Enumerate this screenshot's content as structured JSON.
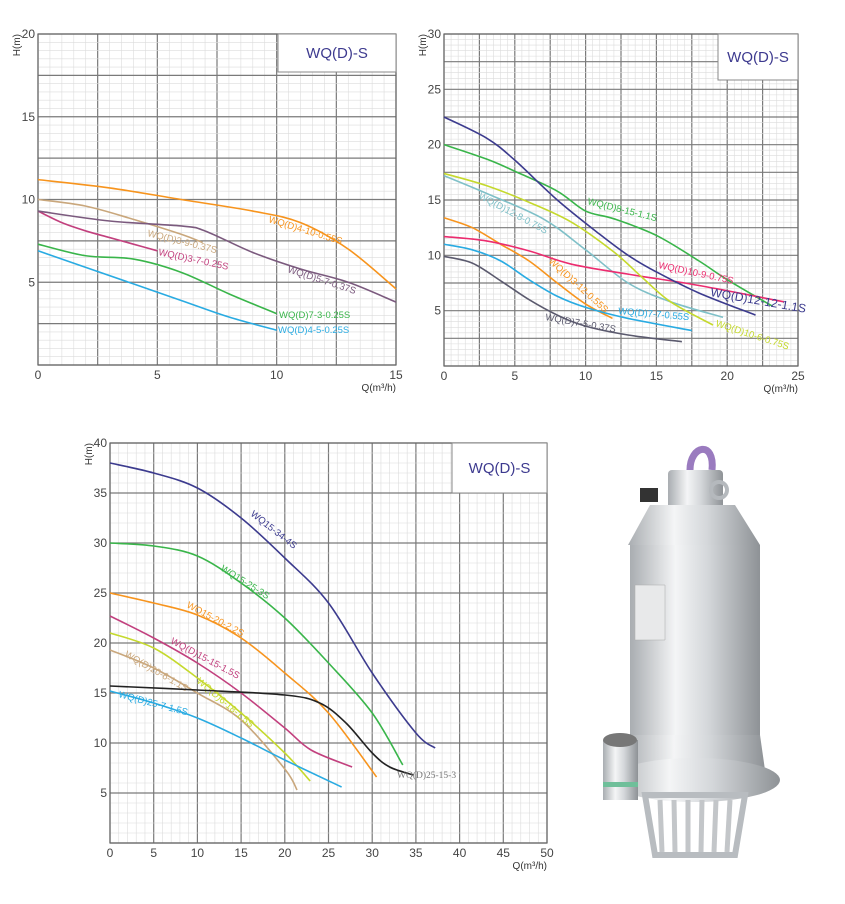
{
  "chart_data": [
    {
      "type": "line",
      "title": "WQ(D)-S",
      "xlabel": "Q(m³/h)",
      "ylabel": "H(m)",
      "xlim": [
        0,
        15
      ],
      "ylim": [
        0,
        20
      ],
      "xticks": [
        "0",
        "5",
        "10",
        "15"
      ],
      "yticks": [
        "5",
        "10",
        "15",
        "20"
      ],
      "grid": true,
      "series": [
        {
          "name": "WQ(D)4-10-0.55S",
          "color": "#f7941d",
          "x": [
            0,
            3,
            6,
            9,
            11,
            13,
            15
          ],
          "y": [
            11.2,
            10.7,
            10,
            9.3,
            8.6,
            7,
            4.6
          ]
        },
        {
          "name": "WQ(D)3-9-0.37S",
          "color": "#c9a77c",
          "x": [
            0,
            2,
            4,
            6,
            6.9
          ],
          "y": [
            10,
            9.6,
            8.8,
            7.9,
            7.4
          ]
        },
        {
          "name": "WQ(D)3-7-0.25S",
          "color": "#c2407e",
          "x": [
            0,
            1,
            2,
            3,
            4,
            5
          ],
          "y": [
            9.3,
            8.6,
            8.1,
            7.7,
            7.3,
            6.9
          ]
        },
        {
          "name": "WQ(D)5-7-0.37S",
          "color": "#7b5a7e",
          "x": [
            0,
            3,
            6,
            7,
            9,
            11,
            13,
            15
          ],
          "y": [
            9.3,
            8.7,
            8.4,
            8.1,
            6.8,
            5.8,
            5,
            3.8
          ]
        },
        {
          "name": "WQ(D)7-3-0.25S",
          "color": "#39b54a",
          "x": [
            0,
            2,
            4,
            6,
            8,
            10
          ],
          "y": [
            7.3,
            6.6,
            6.4,
            5.6,
            4.3,
            3.1
          ]
        },
        {
          "name": "WQ(D)4-5-0.25S",
          "color": "#29abe2",
          "x": [
            0,
            2,
            4,
            6,
            8,
            10
          ],
          "y": [
            6.9,
            5.9,
            4.9,
            3.9,
            2.9,
            2.1
          ]
        }
      ]
    },
    {
      "type": "line",
      "title": "WQ(D)-S",
      "xlabel": "Q(m³/h)",
      "ylabel": "H(m)",
      "xlim": [
        0,
        25
      ],
      "ylim": [
        0,
        30
      ],
      "xticks": [
        "0",
        "5",
        "10",
        "15",
        "20",
        "25"
      ],
      "yticks": [
        "5",
        "10",
        "15",
        "20",
        "25",
        "30"
      ],
      "grid": true,
      "series": [
        {
          "name": "WQ(D)12-8-0.75S",
          "color": "#7fc0c8",
          "x": [
            0,
            3,
            7,
            10,
            13,
            16,
            19.7
          ],
          "y": [
            17.2,
            15.6,
            13.3,
            10.5,
            7.5,
            5.8,
            4.4
          ]
        },
        {
          "name": "WQ(D)8-15-1.1S",
          "color": "#39b54a",
          "x": [
            0,
            3,
            5,
            8,
            10,
            12,
            15,
            18,
            20,
            23.2
          ],
          "y": [
            20,
            18.7,
            17.6,
            15.8,
            14,
            13.3,
            11.8,
            9.5,
            7.8,
            5.4
          ]
        },
        {
          "name": "WQ(D)3-12-0.55S",
          "color": "#f7941d",
          "x": [
            0,
            2,
            4,
            6,
            8,
            10,
            11.9
          ],
          "y": [
            13.4,
            12.5,
            11,
            9.5,
            7.5,
            5.6,
            4.3
          ]
        },
        {
          "name": "WQ(D)10-9-0.75S",
          "color": "#ec2c6f",
          "x": [
            0,
            3,
            6,
            9,
            13,
            17,
            20,
            24
          ],
          "y": [
            11.7,
            11.3,
            10.4,
            9.2,
            8.3,
            7.5,
            6.8,
            5.8
          ]
        },
        {
          "name": "WQ(D)12-12-1.1S",
          "color": "#3c3b8e",
          "x": [
            0,
            3,
            5,
            8,
            11,
            13,
            15,
            18,
            22
          ],
          "y": [
            22.5,
            20.6,
            18.6,
            15,
            11.9,
            10,
            8.5,
            6.6,
            4.6
          ]
        },
        {
          "name": "WQ(D)7-7-0.55S",
          "color": "#29abe2",
          "x": [
            0,
            2,
            4,
            6,
            8,
            10,
            13,
            17.5
          ],
          "y": [
            11,
            10.5,
            9.5,
            7.8,
            6.3,
            5.3,
            4.3,
            3.2
          ]
        },
        {
          "name": "WQ(D)7-5-0.37S",
          "color": "#5b5a6e",
          "x": [
            0,
            2,
            4,
            6,
            8,
            10,
            13,
            16.8
          ],
          "y": [
            9.9,
            9.3,
            7.7,
            6,
            4.6,
            3.6,
            2.8,
            2.2
          ]
        },
        {
          "name": "WQ(D)10-6-0.75S",
          "color": "#c5d92d",
          "x": [
            0,
            3,
            6,
            9,
            12,
            14,
            16,
            19
          ],
          "y": [
            17.4,
            16.3,
            14.8,
            13,
            10.3,
            8,
            5.8,
            3.7
          ]
        }
      ]
    },
    {
      "type": "line",
      "title": "WQ(D)-S",
      "xlabel": "Q(m³/h)",
      "ylabel": "H(m)",
      "xlim": [
        0,
        50
      ],
      "ylim": [
        0,
        40
      ],
      "xticks": [
        "0",
        "5",
        "10",
        "15",
        "20",
        "25",
        "30",
        "35",
        "40",
        "45",
        "50"
      ],
      "yticks": [
        "5",
        "10",
        "15",
        "20",
        "25",
        "30",
        "35",
        "40"
      ],
      "grid": true,
      "series": [
        {
          "name": "WQ15-34-4S",
          "color": "#3c3b8e",
          "x": [
            0,
            5,
            10,
            15,
            20,
            25,
            30,
            35,
            37.2
          ],
          "y": [
            38,
            37,
            35.5,
            32.5,
            28.5,
            24,
            17,
            11,
            9.5
          ]
        },
        {
          "name": "WQ15-25-3S",
          "color": "#39b54a",
          "x": [
            0,
            5,
            10,
            15,
            20,
            25,
            30,
            33.5
          ],
          "y": [
            30,
            29.7,
            28.7,
            26,
            22.5,
            18,
            13,
            7.8
          ]
        },
        {
          "name": "WQ15-20-2.2S",
          "color": "#f7941d",
          "x": [
            0,
            5,
            10,
            15,
            20,
            25,
            30.5
          ],
          "y": [
            25,
            24,
            22.8,
            20.5,
            17,
            13,
            6.6
          ]
        },
        {
          "name": "WQ(D)15-15-1.5S",
          "color": "#c2407e",
          "x": [
            0,
            5,
            10,
            15,
            20,
            23,
            27.7
          ],
          "y": [
            22.7,
            20.5,
            18,
            15,
            11.5,
            9.3,
            7.6
          ]
        },
        {
          "name": "WQ(D)20-6-1.1S",
          "color": "#c9a77c",
          "x": [
            0,
            5,
            10,
            15,
            20,
            21.4
          ],
          "y": [
            19.3,
            17.5,
            15,
            12.3,
            7.4,
            5.3
          ]
        },
        {
          "name": "WQ(D)6-18-1.5S",
          "color": "#c5d92d",
          "x": [
            0,
            5,
            10,
            15,
            20,
            22.9
          ],
          "y": [
            21,
            19.5,
            16.5,
            13,
            9,
            6.2
          ]
        },
        {
          "name": "WQ(D)25-7-1.5S",
          "color": "#29abe2",
          "x": [
            0,
            5,
            10,
            15,
            20,
            26.5
          ],
          "y": [
            15.2,
            14,
            12.5,
            10.5,
            8.3,
            5.6
          ]
        },
        {
          "name": "WQ(D)25-15-3",
          "color": "#222222",
          "x": [
            0,
            10,
            20,
            24,
            27,
            30,
            32,
            34.7
          ],
          "y": [
            15.7,
            15.3,
            14.8,
            14,
            12,
            9,
            7.6,
            6.8
          ]
        }
      ]
    }
  ],
  "product_image": {
    "name": "stainless-steel-submersible-pump",
    "colors": {
      "body": "#d9dcdf",
      "cable": "#9a7bbf"
    }
  }
}
